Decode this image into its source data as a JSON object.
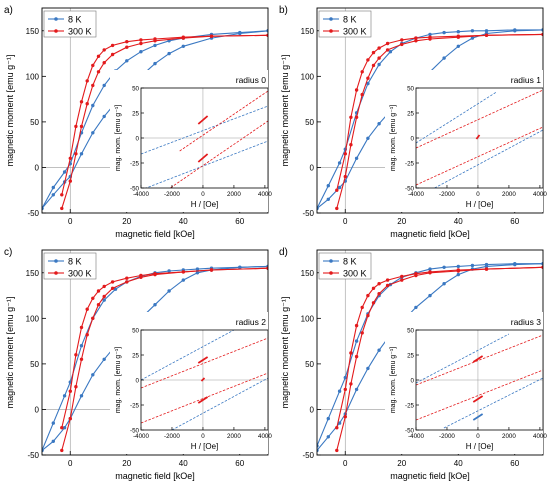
{
  "colors": {
    "blue": "#3a78c2",
    "red": "#e31a1c",
    "axis": "#000000",
    "guide": "#9a9a9a"
  },
  "chart_data": [
    {
      "panel_label": "a)",
      "type": "line",
      "xlabel": "magnetic field [kOe]",
      "ylabel": "magnetic moment [emu g⁻¹]",
      "xlim": [
        -10,
        70
      ],
      "ylim": [
        -50,
        175
      ],
      "xticks": [
        0,
        20,
        40,
        60
      ],
      "xtick_labels": [
        "0",
        "20",
        "40",
        "60"
      ],
      "yticks": [
        -50,
        0,
        50,
        100,
        150
      ],
      "ytick_labels": [
        "-50",
        "0",
        "50",
        "100",
        "150"
      ],
      "legend": {
        "position": "top-left",
        "entries": [
          "8 K",
          "300 K"
        ]
      },
      "series": [
        {
          "name": "8 K",
          "color": "#3a78c2",
          "x": [
            -10,
            -6,
            -2,
            0,
            4,
            8,
            12,
            16,
            20,
            25,
            30,
            35,
            40,
            50,
            60,
            70
          ],
          "upper": [
            -45,
            -22,
            -5,
            4,
            38,
            68,
            90,
            106,
            117,
            127,
            134,
            139,
            142,
            146,
            148,
            150
          ],
          "lower": [
            -45,
            -30,
            -16,
            -10,
            15,
            38,
            56,
            71,
            84,
            100,
            114,
            125,
            133,
            142,
            147,
            150
          ]
        },
        {
          "name": "300 K",
          "color": "#e31a1c",
          "x": [
            -3,
            0,
            2,
            4,
            6,
            8,
            10,
            12,
            15,
            20,
            25,
            30,
            40,
            50,
            70
          ],
          "upper": [
            -30,
            10,
            45,
            72,
            95,
            112,
            122,
            129,
            134,
            138,
            140,
            141,
            143,
            144,
            145
          ],
          "lower": [
            -45,
            -15,
            15,
            45,
            70,
            90,
            105,
            115,
            124,
            132,
            136,
            139,
            142,
            144,
            145
          ]
        }
      ],
      "inset": {
        "title": "radius 0",
        "xlabel": "H / [Oe]",
        "ylabel": "mag. mom. [emu g⁻¹]",
        "xlim": [
          -4000,
          4200
        ],
        "ylim": [
          -50,
          50
        ],
        "xticks": [
          -4000,
          -2000,
          0,
          2000,
          4000
        ],
        "xtick_labels": [
          "-4000",
          "-2000",
          "0",
          "2000",
          "4000"
        ],
        "yticks": [
          -50,
          -25,
          0,
          25,
          50
        ],
        "ytick_labels": [
          "-50",
          "-25",
          "0",
          "25",
          "50"
        ],
        "lines": [
          {
            "color": "#3a78c2",
            "x": [
              -4000,
              4200
            ],
            "y": [
              -16,
              32
            ]
          },
          {
            "color": "#3a78c2",
            "x": [
              -4000,
              4200
            ],
            "y": [
              -52,
              -3
            ]
          },
          {
            "color": "#e31a1c",
            "x": [
              -1500,
              4200
            ],
            "y": [
              -13,
              47
            ]
          },
          {
            "color": "#e31a1c",
            "x": [
              -4000,
              4200
            ],
            "y": [
              -70,
              17
            ]
          }
        ],
        "segments": [
          {
            "color": "#e31a1c",
            "x": [
              -300,
              300
            ],
            "y": [
              14,
              22
            ]
          },
          {
            "color": "#e31a1c",
            "x": [
              -300,
              300
            ],
            "y": [
              -24,
              -16
            ]
          }
        ]
      }
    },
    {
      "panel_label": "b)",
      "type": "line",
      "xlabel": "magnetic field [kOe]",
      "ylabel": "magnetic moment [emu g⁻¹]",
      "xlim": [
        -10,
        70
      ],
      "ylim": [
        -50,
        175
      ],
      "xticks": [
        0,
        20,
        40,
        60
      ],
      "xtick_labels": [
        "0",
        "20",
        "40",
        "60"
      ],
      "yticks": [
        -50,
        0,
        50,
        100,
        150
      ],
      "ytick_labels": [
        "-50",
        "0",
        "50",
        "100",
        "150"
      ],
      "legend": {
        "position": "top-left",
        "entries": [
          "8 K",
          "300 K"
        ]
      },
      "series": [
        {
          "name": "8 K",
          "color": "#3a78c2",
          "x": [
            -10,
            -6,
            -2,
            0,
            4,
            8,
            12,
            16,
            20,
            25,
            30,
            35,
            40,
            45,
            50,
            60,
            70
          ],
          "upper": [
            -45,
            -20,
            5,
            20,
            60,
            92,
            113,
            127,
            136,
            142,
            146,
            148,
            149,
            150,
            150,
            151,
            151
          ],
          "lower": [
            -45,
            -35,
            -22,
            -15,
            10,
            32,
            48,
            62,
            75,
            90,
            105,
            120,
            133,
            142,
            147,
            150,
            151
          ]
        },
        {
          "name": "300 K",
          "color": "#e31a1c",
          "x": [
            -3,
            0,
            2,
            4,
            6,
            8,
            10,
            12,
            15,
            20,
            25,
            30,
            40,
            50,
            70
          ],
          "upper": [
            -25,
            15,
            55,
            85,
            105,
            118,
            126,
            131,
            136,
            140,
            142,
            143,
            144,
            145,
            146
          ],
          "lower": [
            -45,
            -10,
            25,
            55,
            80,
            98,
            112,
            120,
            129,
            135,
            139,
            141,
            143,
            145,
            146
          ]
        }
      ],
      "inset": {
        "title": "radius 1",
        "xlabel": "H / [Oe]",
        "ylabel": "mag. mom. [emu g⁻¹]",
        "xlim": [
          -4000,
          4200
        ],
        "ylim": [
          -50,
          50
        ],
        "xticks": [
          -4000,
          -2000,
          0,
          2000,
          4000
        ],
        "xtick_labels": [
          "-4000",
          "-2000",
          "0",
          "2000",
          "4000"
        ],
        "yticks": [
          -50,
          -25,
          0,
          25,
          50
        ],
        "ytick_labels": [
          "-50",
          "-25",
          "0",
          "25",
          "50"
        ],
        "lines": [
          {
            "color": "#3a78c2",
            "x": [
              -4000,
              1200
            ],
            "y": [
              -5,
              46
            ]
          },
          {
            "color": "#3a78c2",
            "x": [
              -2800,
              4200
            ],
            "y": [
              -50,
              8
            ]
          },
          {
            "color": "#e31a1c",
            "x": [
              -4000,
              4200
            ],
            "y": [
              -10,
              48
            ]
          },
          {
            "color": "#e31a1c",
            "x": [
              -4000,
              4200
            ],
            "y": [
              -47,
              11
            ]
          }
        ],
        "segments": [
          {
            "color": "#e31a1c",
            "x": [
              -100,
              100
            ],
            "y": [
              -1,
              3
            ]
          }
        ]
      }
    },
    {
      "panel_label": "c)",
      "type": "line",
      "xlabel": "magnetic field [kOe]",
      "ylabel": "magnetic moment [emu g⁻¹]",
      "xlim": [
        -10,
        70
      ],
      "ylim": [
        -50,
        175
      ],
      "xticks": [
        0,
        20,
        40,
        60
      ],
      "xtick_labels": [
        "0",
        "20",
        "40",
        "60"
      ],
      "yticks": [
        -50,
        0,
        50,
        100,
        150
      ],
      "ytick_labels": [
        "-50",
        "0",
        "50",
        "100",
        "150"
      ],
      "legend": {
        "position": "top-left",
        "entries": [
          "8 K",
          "300 K"
        ]
      },
      "series": [
        {
          "name": "8 K",
          "color": "#3a78c2",
          "x": [
            -10,
            -6,
            -2,
            0,
            4,
            8,
            12,
            16,
            20,
            25,
            30,
            35,
            40,
            45,
            50,
            60,
            70
          ],
          "upper": [
            -45,
            -15,
            15,
            30,
            70,
            100,
            120,
            132,
            140,
            146,
            150,
            152,
            153,
            154,
            155,
            156,
            157
          ],
          "lower": [
            -45,
            -35,
            -20,
            -10,
            15,
            38,
            55,
            70,
            83,
            100,
            115,
            130,
            142,
            150,
            153,
            156,
            157
          ]
        },
        {
          "name": "300 K",
          "color": "#e31a1c",
          "x": [
            -3,
            0,
            2,
            4,
            6,
            8,
            10,
            12,
            15,
            20,
            25,
            30,
            40,
            50,
            70
          ],
          "upper": [
            -20,
            20,
            60,
            90,
            110,
            122,
            130,
            135,
            140,
            144,
            147,
            149,
            151,
            153,
            155
          ],
          "lower": [
            -45,
            -10,
            25,
            55,
            82,
            100,
            115,
            124,
            133,
            140,
            145,
            148,
            151,
            153,
            155
          ]
        }
      ],
      "inset": {
        "title": "radius 2",
        "xlabel": "H / [Oe]",
        "ylabel": "mag. mom. [emu g⁻¹]",
        "xlim": [
          -4000,
          4200
        ],
        "ylim": [
          -50,
          50
        ],
        "xticks": [
          -4000,
          -2000,
          0,
          2000,
          4000
        ],
        "xtick_labels": [
          "-4000",
          "-2000",
          "0",
          "2000",
          "4000"
        ],
        "yticks": [
          -50,
          -25,
          0,
          25,
          50
        ],
        "ytick_labels": [
          "-50",
          "-25",
          "0",
          "25",
          "50"
        ],
        "lines": [
          {
            "color": "#3a78c2",
            "x": [
              -4000,
              2000
            ],
            "y": [
              0,
              50
            ]
          },
          {
            "color": "#3a78c2",
            "x": [
              -2000,
              4200
            ],
            "y": [
              -50,
              2
            ]
          },
          {
            "color": "#e31a1c",
            "x": [
              -4000,
              4200
            ],
            "y": [
              -8,
              42
            ]
          },
          {
            "color": "#e31a1c",
            "x": [
              -4000,
              4200
            ],
            "y": [
              -43,
              7
            ]
          }
        ],
        "segments": [
          {
            "color": "#e31a1c",
            "x": [
              -300,
              300
            ],
            "y": [
              17,
              23
            ]
          },
          {
            "color": "#e31a1c",
            "x": [
              -300,
              300
            ],
            "y": [
              -23,
              -17
            ]
          },
          {
            "color": "#e31a1c",
            "x": [
              -100,
              100
            ],
            "y": [
              -1,
              2
            ]
          }
        ]
      }
    },
    {
      "panel_label": "d)",
      "type": "line",
      "xlabel": "magnetic field [kOe]",
      "ylabel": "magnetic moment [emu g⁻¹]",
      "xlim": [
        -10,
        70
      ],
      "ylim": [
        -50,
        175
      ],
      "xticks": [
        0,
        20,
        40,
        60
      ],
      "xtick_labels": [
        "0",
        "20",
        "40",
        "60"
      ],
      "yticks": [
        -50,
        0,
        50,
        100,
        150
      ],
      "ytick_labels": [
        "-50",
        "0",
        "50",
        "100",
        "150"
      ],
      "legend": {
        "position": "top-left",
        "entries": [
          "8 K",
          "300 K"
        ]
      },
      "series": [
        {
          "name": "8 K",
          "color": "#3a78c2",
          "x": [
            -10,
            -6,
            -2,
            0,
            4,
            8,
            12,
            16,
            20,
            25,
            30,
            35,
            40,
            45,
            50,
            60,
            70
          ],
          "upper": [
            -40,
            -10,
            20,
            35,
            75,
            105,
            125,
            137,
            145,
            150,
            154,
            156,
            157,
            158,
            159,
            160,
            160
          ],
          "lower": [
            -45,
            -30,
            -15,
            -5,
            22,
            45,
            65,
            82,
            96,
            112,
            125,
            138,
            148,
            154,
            157,
            159,
            160
          ]
        },
        {
          "name": "300 K",
          "color": "#e31a1c",
          "x": [
            -3,
            0,
            2,
            4,
            6,
            8,
            10,
            12,
            15,
            20,
            25,
            30,
            40,
            50,
            70
          ],
          "upper": [
            -20,
            22,
            62,
            92,
            112,
            125,
            133,
            138,
            142,
            146,
            149,
            151,
            153,
            154,
            156
          ],
          "lower": [
            -45,
            -8,
            28,
            58,
            84,
            103,
            117,
            127,
            136,
            142,
            147,
            150,
            152,
            154,
            156
          ]
        }
      ],
      "inset": {
        "title": "radius 3",
        "xlabel": "H / [Oe]",
        "ylabel": "mag. mom. [emu g⁻¹]",
        "xlim": [
          -4000,
          4200
        ],
        "ylim": [
          -50,
          50
        ],
        "xticks": [
          -4000,
          -2000,
          0,
          2000,
          4000
        ],
        "xtick_labels": [
          "-4000",
          "-2000",
          "0",
          "2000",
          "4000"
        ],
        "yticks": [
          -50,
          -25,
          0,
          25,
          50
        ],
        "ytick_labels": [
          "-50",
          "-25",
          "0",
          "25",
          "50"
        ],
        "lines": [
          {
            "color": "#3a78c2",
            "x": [
              -4000,
              2000
            ],
            "y": [
              -3,
              46
            ]
          },
          {
            "color": "#3a78c2",
            "x": [
              -2200,
              4200
            ],
            "y": [
              -48,
              2
            ]
          },
          {
            "color": "#e31a1c",
            "x": [
              -4000,
              4200
            ],
            "y": [
              -5,
              45
            ]
          },
          {
            "color": "#e31a1c",
            "x": [
              -4000,
              4200
            ],
            "y": [
              -40,
              10
            ]
          }
        ],
        "segments": [
          {
            "color": "#e31a1c",
            "x": [
              -300,
              300
            ],
            "y": [
              18,
              24
            ]
          },
          {
            "color": "#e31a1c",
            "x": [
              -300,
              300
            ],
            "y": [
              -22,
              -16
            ]
          },
          {
            "color": "#3a78c2",
            "x": [
              -300,
              300
            ],
            "y": [
              -40,
              -34
            ]
          }
        ]
      }
    }
  ]
}
